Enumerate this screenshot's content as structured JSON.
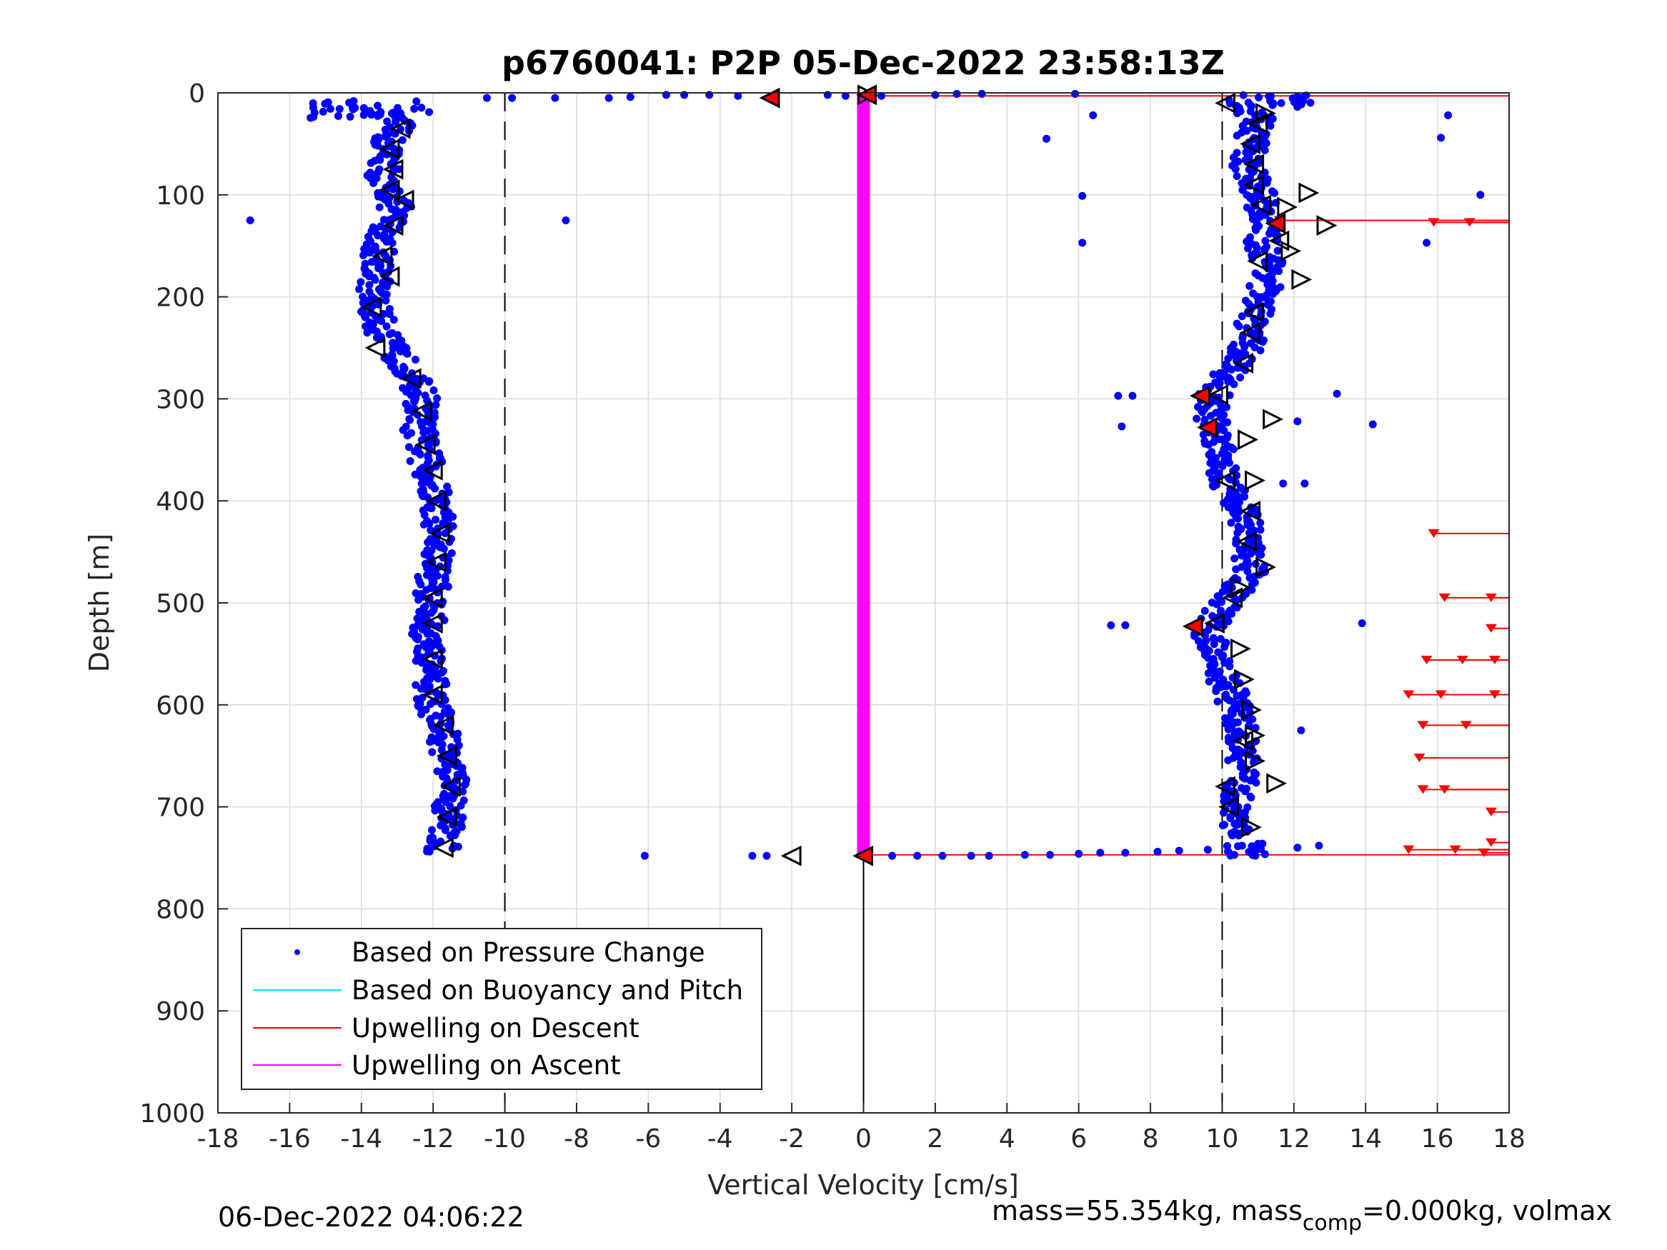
{
  "chart_data": {
    "type": "scatter",
    "title": "p6760041: P2P 05-Dec-2022 23:58:13Z",
    "xlabel": "Vertical Velocity [cm/s]",
    "ylabel": "Depth [m]",
    "xlim": [
      -18,
      18
    ],
    "ylim": [
      0,
      1000
    ],
    "y_reversed": true,
    "grid": true,
    "x_ticks": [
      "-18",
      "-16",
      "-14",
      "-12",
      "-10",
      "-8",
      "-6",
      "-4",
      "-2",
      "0",
      "2",
      "4",
      "6",
      "8",
      "10",
      "12",
      "14",
      "16",
      "18"
    ],
    "y_ticks": [
      "0",
      "100",
      "200",
      "300",
      "400",
      "500",
      "600",
      "700",
      "800",
      "900",
      "1000"
    ],
    "reference_lines": {
      "dashed_x": [
        -10,
        10
      ],
      "solid_x": 0,
      "solid_x_depth_range": [
        750,
        1000
      ]
    },
    "legend": {
      "placement": "bottom-left",
      "entries": [
        {
          "label": "Based on Pressure Change",
          "color": "#0000ff",
          "style": "dot"
        },
        {
          "label": "Based on Buoyancy and Pitch",
          "color": "#00e5ff",
          "style": "line"
        },
        {
          "label": "Upwelling on Descent",
          "color": "#ff0000",
          "style": "line"
        },
        {
          "label": "Upwelling on Ascent",
          "color": "#ff00ff",
          "style": "line"
        }
      ]
    },
    "colors": {
      "pressure": "#0000ff",
      "descent": "#ff0000",
      "ascent": "#ff00ff",
      "marker_edge": "#000000"
    },
    "series": [
      {
        "name": "Based on Pressure Change",
        "kind": "descent_profile",
        "points": [
          [
            -14.5,
            15
          ],
          [
            -13.5,
            20
          ],
          [
            -13,
            30
          ],
          [
            -13.3,
            50
          ],
          [
            -13.3,
            70
          ],
          [
            -13.5,
            90
          ],
          [
            -13,
            105
          ],
          [
            -13.2,
            125
          ],
          [
            -13.5,
            150
          ],
          [
            -13.5,
            175
          ],
          [
            -13.7,
            195
          ],
          [
            -13.6,
            215
          ],
          [
            -13.3,
            245
          ],
          [
            -12.7,
            270
          ],
          [
            -12.3,
            300
          ],
          [
            -12.4,
            330
          ],
          [
            -12.2,
            360
          ],
          [
            -12,
            390
          ],
          [
            -11.8,
            420
          ],
          [
            -11.9,
            450
          ],
          [
            -12,
            480
          ],
          [
            -12.1,
            510
          ],
          [
            -12.2,
            540
          ],
          [
            -12.1,
            570
          ],
          [
            -12,
            600
          ],
          [
            -11.7,
            630
          ],
          [
            -11.5,
            660
          ],
          [
            -11.5,
            690
          ],
          [
            -11.6,
            720
          ],
          [
            -11.8,
            745
          ]
        ]
      },
      {
        "name": "Based on Pressure Change",
        "kind": "ascent_profile",
        "points": [
          [
            10.5,
            10
          ],
          [
            11,
            25
          ],
          [
            10.8,
            45
          ],
          [
            10.7,
            70
          ],
          [
            11,
            95
          ],
          [
            11.2,
            120
          ],
          [
            11.1,
            150
          ],
          [
            11.4,
            175
          ],
          [
            11,
            205
          ],
          [
            10.8,
            235
          ],
          [
            10.5,
            265
          ],
          [
            9.8,
            290
          ],
          [
            9.7,
            320
          ],
          [
            10,
            350
          ],
          [
            10.1,
            380
          ],
          [
            10.6,
            410
          ],
          [
            10.7,
            440
          ],
          [
            10.8,
            470
          ],
          [
            10.1,
            500
          ],
          [
            9.6,
            525
          ],
          [
            9.8,
            555
          ],
          [
            10.2,
            585
          ],
          [
            10.5,
            615
          ],
          [
            10.6,
            645
          ],
          [
            10.5,
            675
          ],
          [
            10.4,
            705
          ],
          [
            10.5,
            730
          ]
        ]
      },
      {
        "name": "Based on Pressure Change",
        "kind": "scattered",
        "points": [
          [
            -17.1,
            125
          ],
          [
            -8.3,
            125
          ],
          [
            -10.5,
            5
          ],
          [
            -9.8,
            5
          ],
          [
            -8.6,
            5
          ],
          [
            -7.1,
            5
          ],
          [
            -6.5,
            4
          ],
          [
            -5.5,
            2
          ],
          [
            -5,
            2
          ],
          [
            -4.3,
            2
          ],
          [
            -3.5,
            3
          ],
          [
            -1,
            2
          ],
          [
            -0.5,
            3
          ],
          [
            0.5,
            3
          ],
          [
            2,
            2
          ],
          [
            2.6,
            1
          ],
          [
            3.3,
            1
          ],
          [
            5.9,
            1
          ],
          [
            6.4,
            22
          ],
          [
            5.1,
            45
          ],
          [
            6.1,
            101
          ],
          [
            6.1,
            147
          ],
          [
            16.3,
            22
          ],
          [
            16.1,
            44
          ],
          [
            17.2,
            100
          ],
          [
            15.7,
            147
          ],
          [
            7.1,
            297
          ],
          [
            7.5,
            297
          ],
          [
            7.2,
            327
          ],
          [
            13.2,
            295
          ],
          [
            14.2,
            325
          ],
          [
            12.1,
            322
          ],
          [
            11.7,
            383
          ],
          [
            12.3,
            383
          ],
          [
            13.9,
            520
          ],
          [
            6.9,
            522
          ],
          [
            7.3,
            522
          ],
          [
            12.2,
            625
          ],
          [
            12.7,
            738
          ],
          [
            12.1,
            740
          ],
          [
            -6.1,
            748
          ],
          [
            -3.1,
            748
          ],
          [
            -2.7,
            748
          ],
          [
            0.8,
            748
          ],
          [
            1.5,
            748
          ],
          [
            2.2,
            748
          ],
          [
            3,
            748
          ],
          [
            3.5,
            748
          ],
          [
            4.5,
            747
          ],
          [
            5.2,
            747
          ],
          [
            6,
            746
          ],
          [
            6.6,
            745
          ],
          [
            7.3,
            745
          ],
          [
            8.2,
            744
          ],
          [
            8.8,
            743
          ],
          [
            9.6,
            742
          ]
        ]
      },
      {
        "name": "Upwelling on Descent",
        "arrows": [
          [
            11.6,
            125
          ],
          [
            15.9,
            127
          ],
          [
            16.9,
            127
          ],
          [
            15.9,
            432
          ],
          [
            16.2,
            495
          ],
          [
            17.5,
            495
          ],
          [
            17.5,
            525
          ],
          [
            15.7,
            556
          ],
          [
            16.7,
            556
          ],
          [
            17.6,
            556
          ],
          [
            15.2,
            590
          ],
          [
            16.1,
            590
          ],
          [
            17.6,
            590
          ],
          [
            15.6,
            620
          ],
          [
            16.8,
            620
          ],
          [
            15.5,
            652
          ],
          [
            15.6,
            683
          ],
          [
            16.2,
            683
          ],
          [
            17.5,
            705
          ],
          [
            17.5,
            735
          ],
          [
            15.2,
            742
          ],
          [
            16.5,
            742
          ],
          [
            17.3,
            745
          ]
        ]
      },
      {
        "name": "Upwelling on Ascent",
        "x": 0,
        "depth_range": [
          0,
          748
        ]
      },
      {
        "name": "triangle_markers",
        "left": [
          [
            -12.9,
            35
          ],
          [
            -13.2,
            55
          ],
          [
            -13.1,
            75
          ],
          [
            -13.2,
            95
          ],
          [
            -12.8,
            105
          ],
          [
            -13.1,
            130
          ],
          [
            -13.4,
            160
          ],
          [
            -13.2,
            180
          ],
          [
            -13.7,
            210
          ],
          [
            -13.6,
            250
          ],
          [
            -12.6,
            280
          ],
          [
            -12.3,
            312
          ],
          [
            -12.2,
            345
          ],
          [
            -12,
            370
          ],
          [
            -11.9,
            400
          ],
          [
            -11.8,
            432
          ],
          [
            -11.9,
            460
          ],
          [
            -12,
            495
          ],
          [
            -12,
            520
          ],
          [
            -12,
            555
          ],
          [
            -12,
            590
          ],
          [
            -11.7,
            620
          ],
          [
            -11.6,
            650
          ],
          [
            -11.5,
            680
          ],
          [
            -11.6,
            710
          ],
          [
            -11.7,
            740
          ],
          [
            -2,
            748
          ],
          [
            10.1,
            10
          ],
          [
            11,
            30
          ],
          [
            10.8,
            50
          ],
          [
            10.9,
            70
          ],
          [
            10.9,
            90
          ],
          [
            11.1,
            110
          ],
          [
            11.6,
            145
          ],
          [
            11,
            165
          ],
          [
            10.9,
            215
          ],
          [
            10.8,
            235
          ],
          [
            10.6,
            265
          ],
          [
            9.9,
            296
          ],
          [
            10.1,
            380
          ],
          [
            10.8,
            410
          ],
          [
            10.7,
            440
          ],
          [
            10.3,
            495
          ],
          [
            9.8,
            520
          ],
          [
            10.6,
            635
          ],
          [
            10.1,
            680
          ],
          [
            10.2,
            700
          ]
        ],
        "right": [
          [
            0.1,
            2
          ],
          [
            11.2,
            20
          ],
          [
            12.4,
            98
          ],
          [
            11.8,
            112
          ],
          [
            12.9,
            130
          ],
          [
            11.9,
            155
          ],
          [
            12.2,
            183
          ],
          [
            10.7,
            340
          ],
          [
            11.4,
            320
          ],
          [
            10.9,
            380
          ],
          [
            11.2,
            465
          ],
          [
            10.5,
            485
          ],
          [
            10.5,
            545
          ],
          [
            10.6,
            575
          ],
          [
            10.8,
            605
          ],
          [
            10.9,
            630
          ],
          [
            10.9,
            655
          ],
          [
            11.5,
            677
          ],
          [
            10.8,
            720
          ]
        ],
        "red_filled": [
          [
            -2.6,
            5
          ],
          [
            0.1,
            2
          ],
          [
            11.5,
            128
          ],
          [
            9.4,
            297
          ],
          [
            9.6,
            328
          ],
          [
            9.2,
            523
          ],
          [
            0,
            748
          ]
        ]
      }
    ],
    "footer_left": "06-Dec-2022 04:06:22",
    "footer_right": {
      "pre": "mass=55.354kg, mass",
      "sub": "comp",
      "post": "=0.000kg, volmax"
    }
  }
}
